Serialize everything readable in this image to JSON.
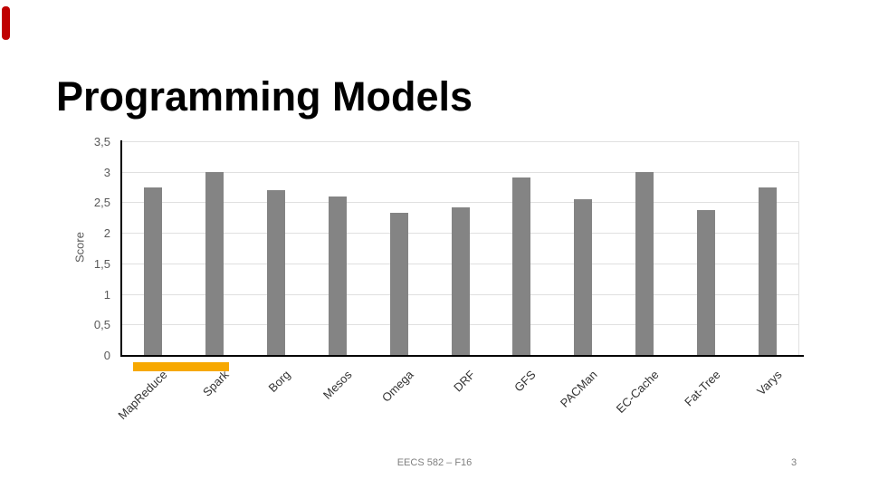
{
  "slide": {
    "title": "Programming Models",
    "footer_text": "EECS 582 – F16",
    "page_number": "3",
    "accent_color": "#c00000"
  },
  "chart_data": {
    "type": "bar",
    "title": "",
    "xlabel": "",
    "ylabel": "Score",
    "categories": [
      "MapReduce",
      "Spark",
      "Borg",
      "Mesos",
      "Omega",
      "DRF",
      "GFS",
      "PACMan",
      "EC-Cache",
      "Fat-Tree",
      "Varys"
    ],
    "values": [
      2.75,
      3.0,
      2.7,
      2.6,
      2.33,
      2.42,
      2.9,
      2.55,
      3.0,
      2.38,
      2.75
    ],
    "ylim": [
      0,
      3.5
    ],
    "ytick_values": [
      0,
      0.5,
      1,
      1.5,
      2,
      2.5,
      3,
      3.5
    ],
    "ytick_labels": [
      "0",
      "0,5",
      "1",
      "1,5",
      "2",
      "2,5",
      "3",
      "3,5"
    ],
    "grid": true,
    "legend_position": "none",
    "bar_color": "#848484",
    "gridline_color": "#e0e0e0",
    "axis_color": "#000000",
    "tick_label_color": "#595959",
    "category_label_color": "#333333",
    "highlight_underline": {
      "from_category": "MapReduce",
      "to_category": "Spark",
      "color": "#f7a800"
    }
  }
}
